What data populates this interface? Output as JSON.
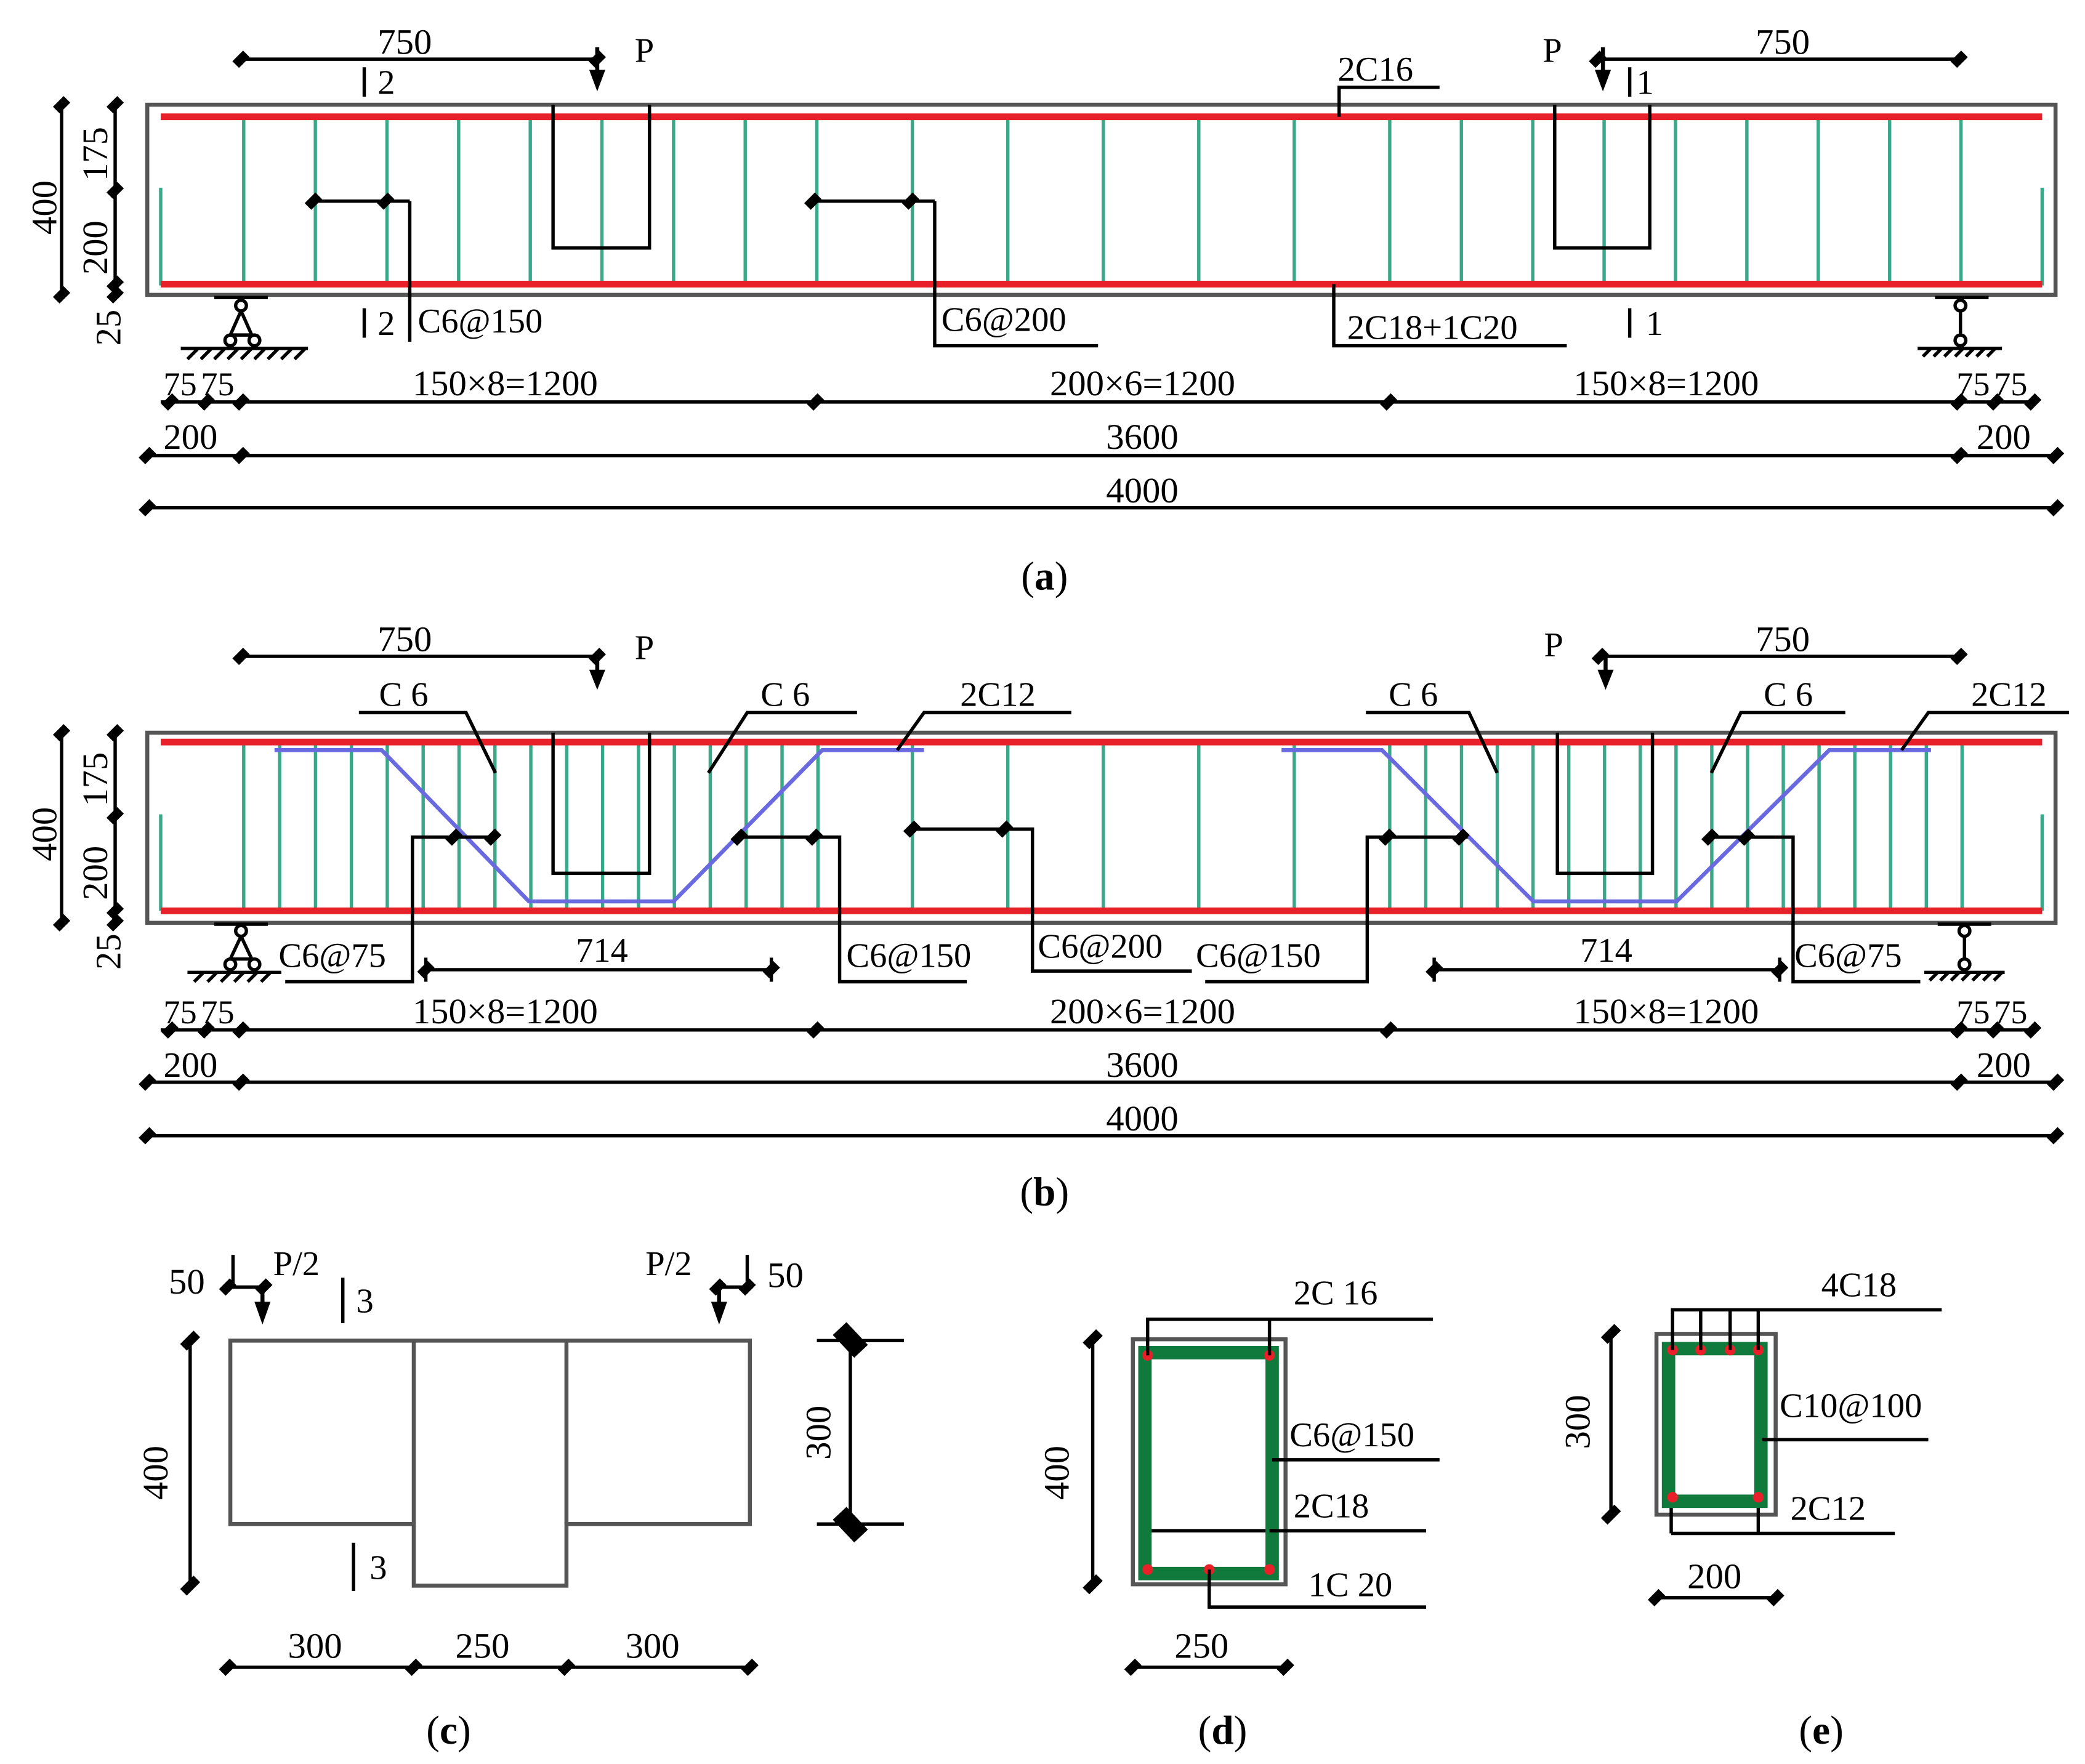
{
  "labels": {
    "a": {
      "shear_span_left": "750",
      "shear_span_right": "750",
      "load_left": "P",
      "load_right": "P",
      "section_mark_2_top": "2",
      "section_mark_2_bottom": "2",
      "section_mark_1_top": "1",
      "section_mark_1_bottom": "1",
      "top_bar": "2C16",
      "stirrup_end": "C6@150",
      "stirrup_mid": "C6@200",
      "bottom_bar": "2C18+1C20",
      "height_total": "400",
      "height_upper": "175",
      "height_middle": "200",
      "height_lower": "25",
      "dim_75_1": "75",
      "dim_75_2": "75",
      "dim_75_3": "75",
      "dim_75_4": "75",
      "spacing_left": "150×8=1200",
      "spacing_mid": "200×6=1200",
      "spacing_right": "150×8=1200",
      "overhang_left": "200",
      "overhang_right": "200",
      "span": "3600",
      "total": "4000",
      "caption_letter": "a"
    },
    "b": {
      "shear_span_left": "750",
      "shear_span_right": "750",
      "load_left": "P",
      "load_right": "P",
      "bent_bar_1": "C 6",
      "bent_bar_2": "C 6",
      "bent_bar_3": "C 6",
      "bent_bar_4": "C 6",
      "top_bar_left": "2C12",
      "top_bar_right": "2C12",
      "stirrup_end_left": "C6@75",
      "stirrup_150_left": "C6@150",
      "stirrup_mid": "C6@200",
      "stirrup_150_right": "C6@150",
      "stirrup_end_right": "C6@75",
      "bent_length_left": "714",
      "bent_length_right": "714",
      "height_total": "400",
      "height_upper": "175",
      "height_middle": "200",
      "height_lower": "25",
      "dim_75_1": "75",
      "dim_75_2": "75",
      "dim_75_3": "75",
      "dim_75_4": "75",
      "spacing_left": "150×8=1200",
      "spacing_mid": "200×6=1200",
      "spacing_right": "150×8=1200",
      "overhang_left": "200",
      "overhang_right": "200",
      "span": "3600",
      "total": "4000",
      "caption_letter": "b"
    },
    "c": {
      "offset_left": "50",
      "offset_right": "50",
      "load_left": "P/2",
      "load_right": "P/2",
      "section_mark_top": "3",
      "section_mark_bottom": "3",
      "height_left": "400",
      "height_right": "300",
      "width_left": "300",
      "width_mid": "250",
      "width_right": "300",
      "caption_letter": "c"
    },
    "d": {
      "top_bar": "2C 16",
      "stirrup": "C6@150",
      "bottom_bar_1": "2C18",
      "bottom_bar_2": "1C 20",
      "height": "400",
      "width": "250",
      "caption_letter": "d"
    },
    "e": {
      "top_bar": "4C18",
      "stirrup": "C10@100",
      "bottom_bar": "2C12",
      "height": "300",
      "width": "200",
      "caption_letter": "e"
    }
  },
  "colors": {
    "longitudinal_bar": "#e8202a",
    "stirrup_elevation": "#3aa889",
    "bent_bar": "#6a6ae0",
    "stirrup_section": "#0f7a3c",
    "rebar_dot": "#e8202a"
  }
}
